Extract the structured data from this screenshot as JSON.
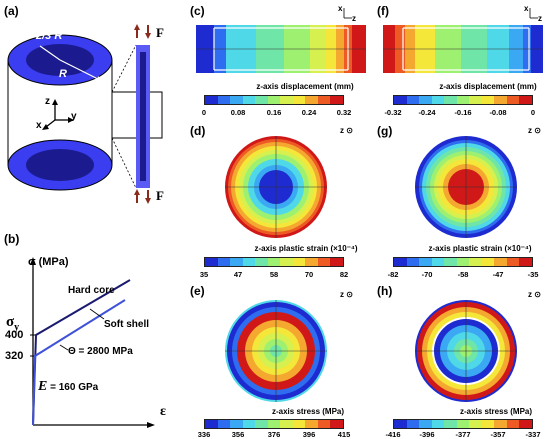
{
  "panels": {
    "a": {
      "label": "(a)",
      "radius_outer": "R",
      "radius_inner": "2/3 R",
      "axis_z": "z",
      "axis_x": "x",
      "axis_y": "y",
      "force": "F",
      "colors": {
        "shell": "#3a3df0",
        "core": "#1b1b8f",
        "rim": "#5a5af5"
      }
    },
    "b": {
      "label": "(b)",
      "ylabel": "σ (MPa)",
      "xlabel": "ε",
      "sigma_y": "σ",
      "sigma_y_sub": "y",
      "tick_400": "400",
      "tick_320": "320",
      "hard_core": "Hard core",
      "soft_shell": "Soft shell",
      "theta_label": "Θ = 2800 MPa",
      "modulus_label": "E = 160 GPa",
      "modulus_letter": "E",
      "modulus_rest": " = 160 GPa",
      "series": {
        "hard_core_color": "#1b1b6f",
        "soft_shell_color": "#3f52d8"
      }
    },
    "c": {
      "label": "(c)",
      "title": "z-axis displacement (mm)",
      "ticks": [
        "0",
        "0.08",
        "0.16",
        "0.24",
        "0.32"
      ],
      "axis_x": "x",
      "axis_z": "z"
    },
    "d": {
      "label": "(d)",
      "title": "z-axis plastic strain (×10⁻⁴)",
      "ticks": [
        "35",
        "47",
        "58",
        "70",
        "82"
      ],
      "axis_z": "z"
    },
    "e": {
      "label": "(e)",
      "title": "z-axis stress (MPa)",
      "ticks": [
        "336",
        "356",
        "376",
        "396",
        "415"
      ],
      "axis_z": "z"
    },
    "f": {
      "label": "(f)",
      "title": "z-axis displacement (mm)",
      "ticks": [
        "-0.32",
        "-0.24",
        "-0.16",
        "-0.08",
        "0"
      ],
      "axis_x": "x",
      "axis_z": "z"
    },
    "g": {
      "label": "(g)",
      "title": "z-axis plastic strain (×10⁻⁴)",
      "ticks": [
        "-82",
        "-70",
        "-58",
        "-47",
        "-35"
      ],
      "axis_z": "z"
    },
    "h": {
      "label": "(h)",
      "title": "z-axis stress (MPa)",
      "ticks": [
        "-416",
        "-396",
        "-377",
        "-357",
        "-337"
      ],
      "axis_z": "z"
    }
  },
  "colormap": [
    "#1e2bd0",
    "#2f6df0",
    "#3aa8f2",
    "#4fd8e8",
    "#6fe6a8",
    "#9ef070",
    "#d6f050",
    "#f5e63a",
    "#f5a830",
    "#ee5a24",
    "#d01818"
  ]
}
